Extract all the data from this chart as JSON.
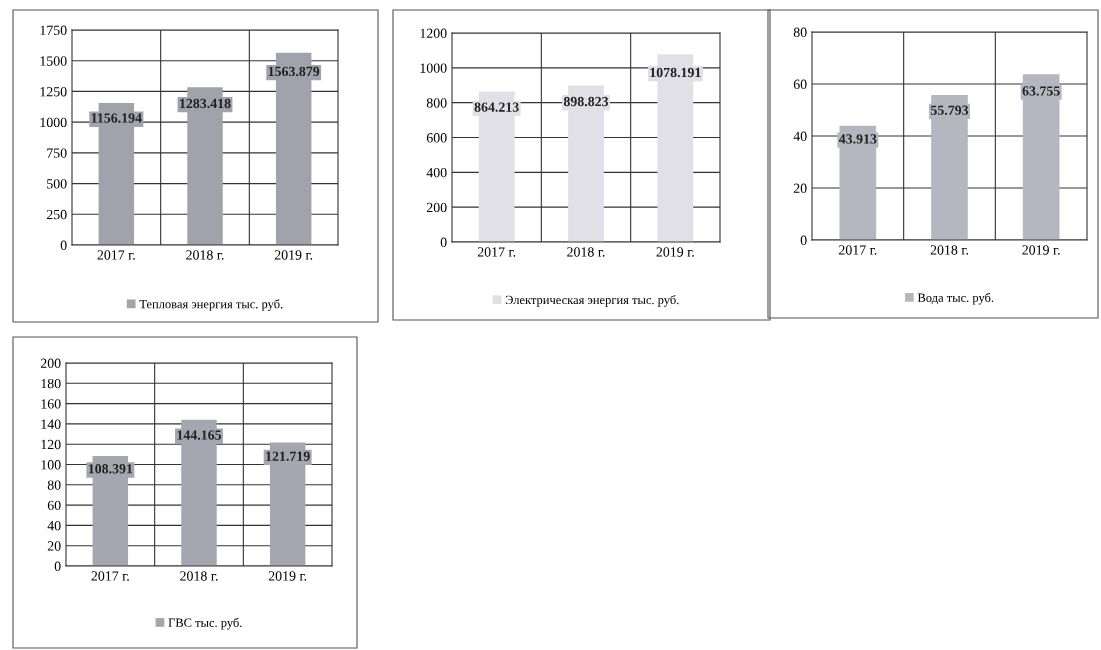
{
  "chart_data": [
    {
      "type": "bar",
      "categories": [
        "2017 г.",
        "2018 г.",
        "2019 г."
      ],
      "series": [
        {
          "name": "Тепловая энергия тыс. руб.",
          "color": "#a2a2ac",
          "values": [
            1156.194,
            1283.418,
            1563.879
          ]
        }
      ],
      "ylim": [
        0,
        1750
      ],
      "yticks": [
        0,
        250,
        500,
        750,
        1000,
        1250,
        1500,
        1750
      ],
      "grid": true,
      "legend": "bottom",
      "data_labels": true
    },
    {
      "type": "bar",
      "categories": [
        "2017 г.",
        "2018 г.",
        "2019 г."
      ],
      "series": [
        {
          "name": "Электрическая энергия тыс. руб.",
          "color": "#e0e0e6",
          "values": [
            864.213,
            898.823,
            1078.191
          ]
        }
      ],
      "ylim": [
        0,
        1200
      ],
      "yticks": [
        0,
        200,
        400,
        600,
        800,
        1000,
        1200
      ],
      "grid": true,
      "legend": "bottom",
      "data_labels": true
    },
    {
      "type": "bar",
      "categories": [
        "2017 г.",
        "2018 г.",
        "2019 г."
      ],
      "series": [
        {
          "name": "Вода тыс. руб.",
          "color": "#b6b6c0",
          "values": [
            43.913,
            55.793,
            63.755
          ]
        }
      ],
      "ylim": [
        0,
        80
      ],
      "yticks": [
        0,
        20,
        40,
        60,
        80
      ],
      "grid": true,
      "legend": "bottom",
      "data_labels": true
    },
    {
      "type": "bar",
      "categories": [
        "2017 г.",
        "2018 г.",
        "2019 г."
      ],
      "series": [
        {
          "name": "ГВС тыс. руб.",
          "color": "#a6a6b0",
          "values": [
            108.391,
            144.165,
            121.719
          ]
        }
      ],
      "ylim": [
        0,
        200
      ],
      "yticks": [
        0,
        20,
        40,
        60,
        80,
        100,
        120,
        140,
        160,
        180,
        200
      ],
      "grid": true,
      "legend": "bottom",
      "data_labels": true
    }
  ]
}
